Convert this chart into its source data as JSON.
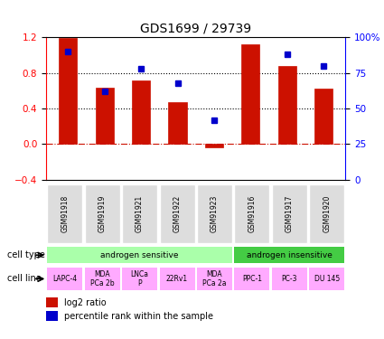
{
  "title": "GDS1699 / 29739",
  "samples": [
    "GSM91918",
    "GSM91919",
    "GSM91921",
    "GSM91922",
    "GSM91923",
    "GSM91916",
    "GSM91917",
    "GSM91920"
  ],
  "log2_ratio": [
    1.19,
    0.63,
    0.72,
    0.47,
    -0.04,
    1.12,
    0.88,
    0.62
  ],
  "percentile_rank": [
    0.9,
    0.62,
    0.78,
    0.68,
    0.42,
    null,
    0.88,
    0.8
  ],
  "bar_color": "#cc1100",
  "dot_color": "#0000cc",
  "ylim_left": [
    -0.4,
    1.2
  ],
  "ylim_right": [
    0,
    100
  ],
  "yticks_left": [
    -0.4,
    0,
    0.4,
    0.8,
    1.2
  ],
  "yticks_right": [
    0,
    25,
    50,
    75,
    100
  ],
  "hline_y": 0,
  "dotted_lines": [
    0.4,
    0.8
  ],
  "cell_type_groups": [
    {
      "label": "androgen sensitive",
      "indices": [
        0,
        1,
        2,
        3,
        4
      ],
      "color": "#aaffaa"
    },
    {
      "label": "androgen insensitive",
      "indices": [
        5,
        6,
        7
      ],
      "color": "#44cc44"
    }
  ],
  "cell_lines": [
    {
      "label": "LAPC-4",
      "index": 0,
      "color": "#ffaaff"
    },
    {
      "label": "MDA\nPCa 2b",
      "index": 1,
      "color": "#ffaaff"
    },
    {
      "label": "LNCa\nP",
      "index": 2,
      "color": "#ffaaff"
    },
    {
      "label": "22Rv1",
      "index": 3,
      "color": "#ffaaff"
    },
    {
      "label": "MDA\nPCa 2a",
      "index": 4,
      "color": "#ffaaff"
    },
    {
      "label": "PPC-1",
      "index": 5,
      "color": "#ffaaff"
    },
    {
      "label": "PC-3",
      "index": 6,
      "color": "#ffaaff"
    },
    {
      "label": "DU 145",
      "index": 7,
      "color": "#ffaaff"
    }
  ],
  "legend_log2": "log2 ratio",
  "legend_pct": "percentile rank within the sample",
  "cell_type_label": "cell type",
  "cell_line_label": "cell line"
}
